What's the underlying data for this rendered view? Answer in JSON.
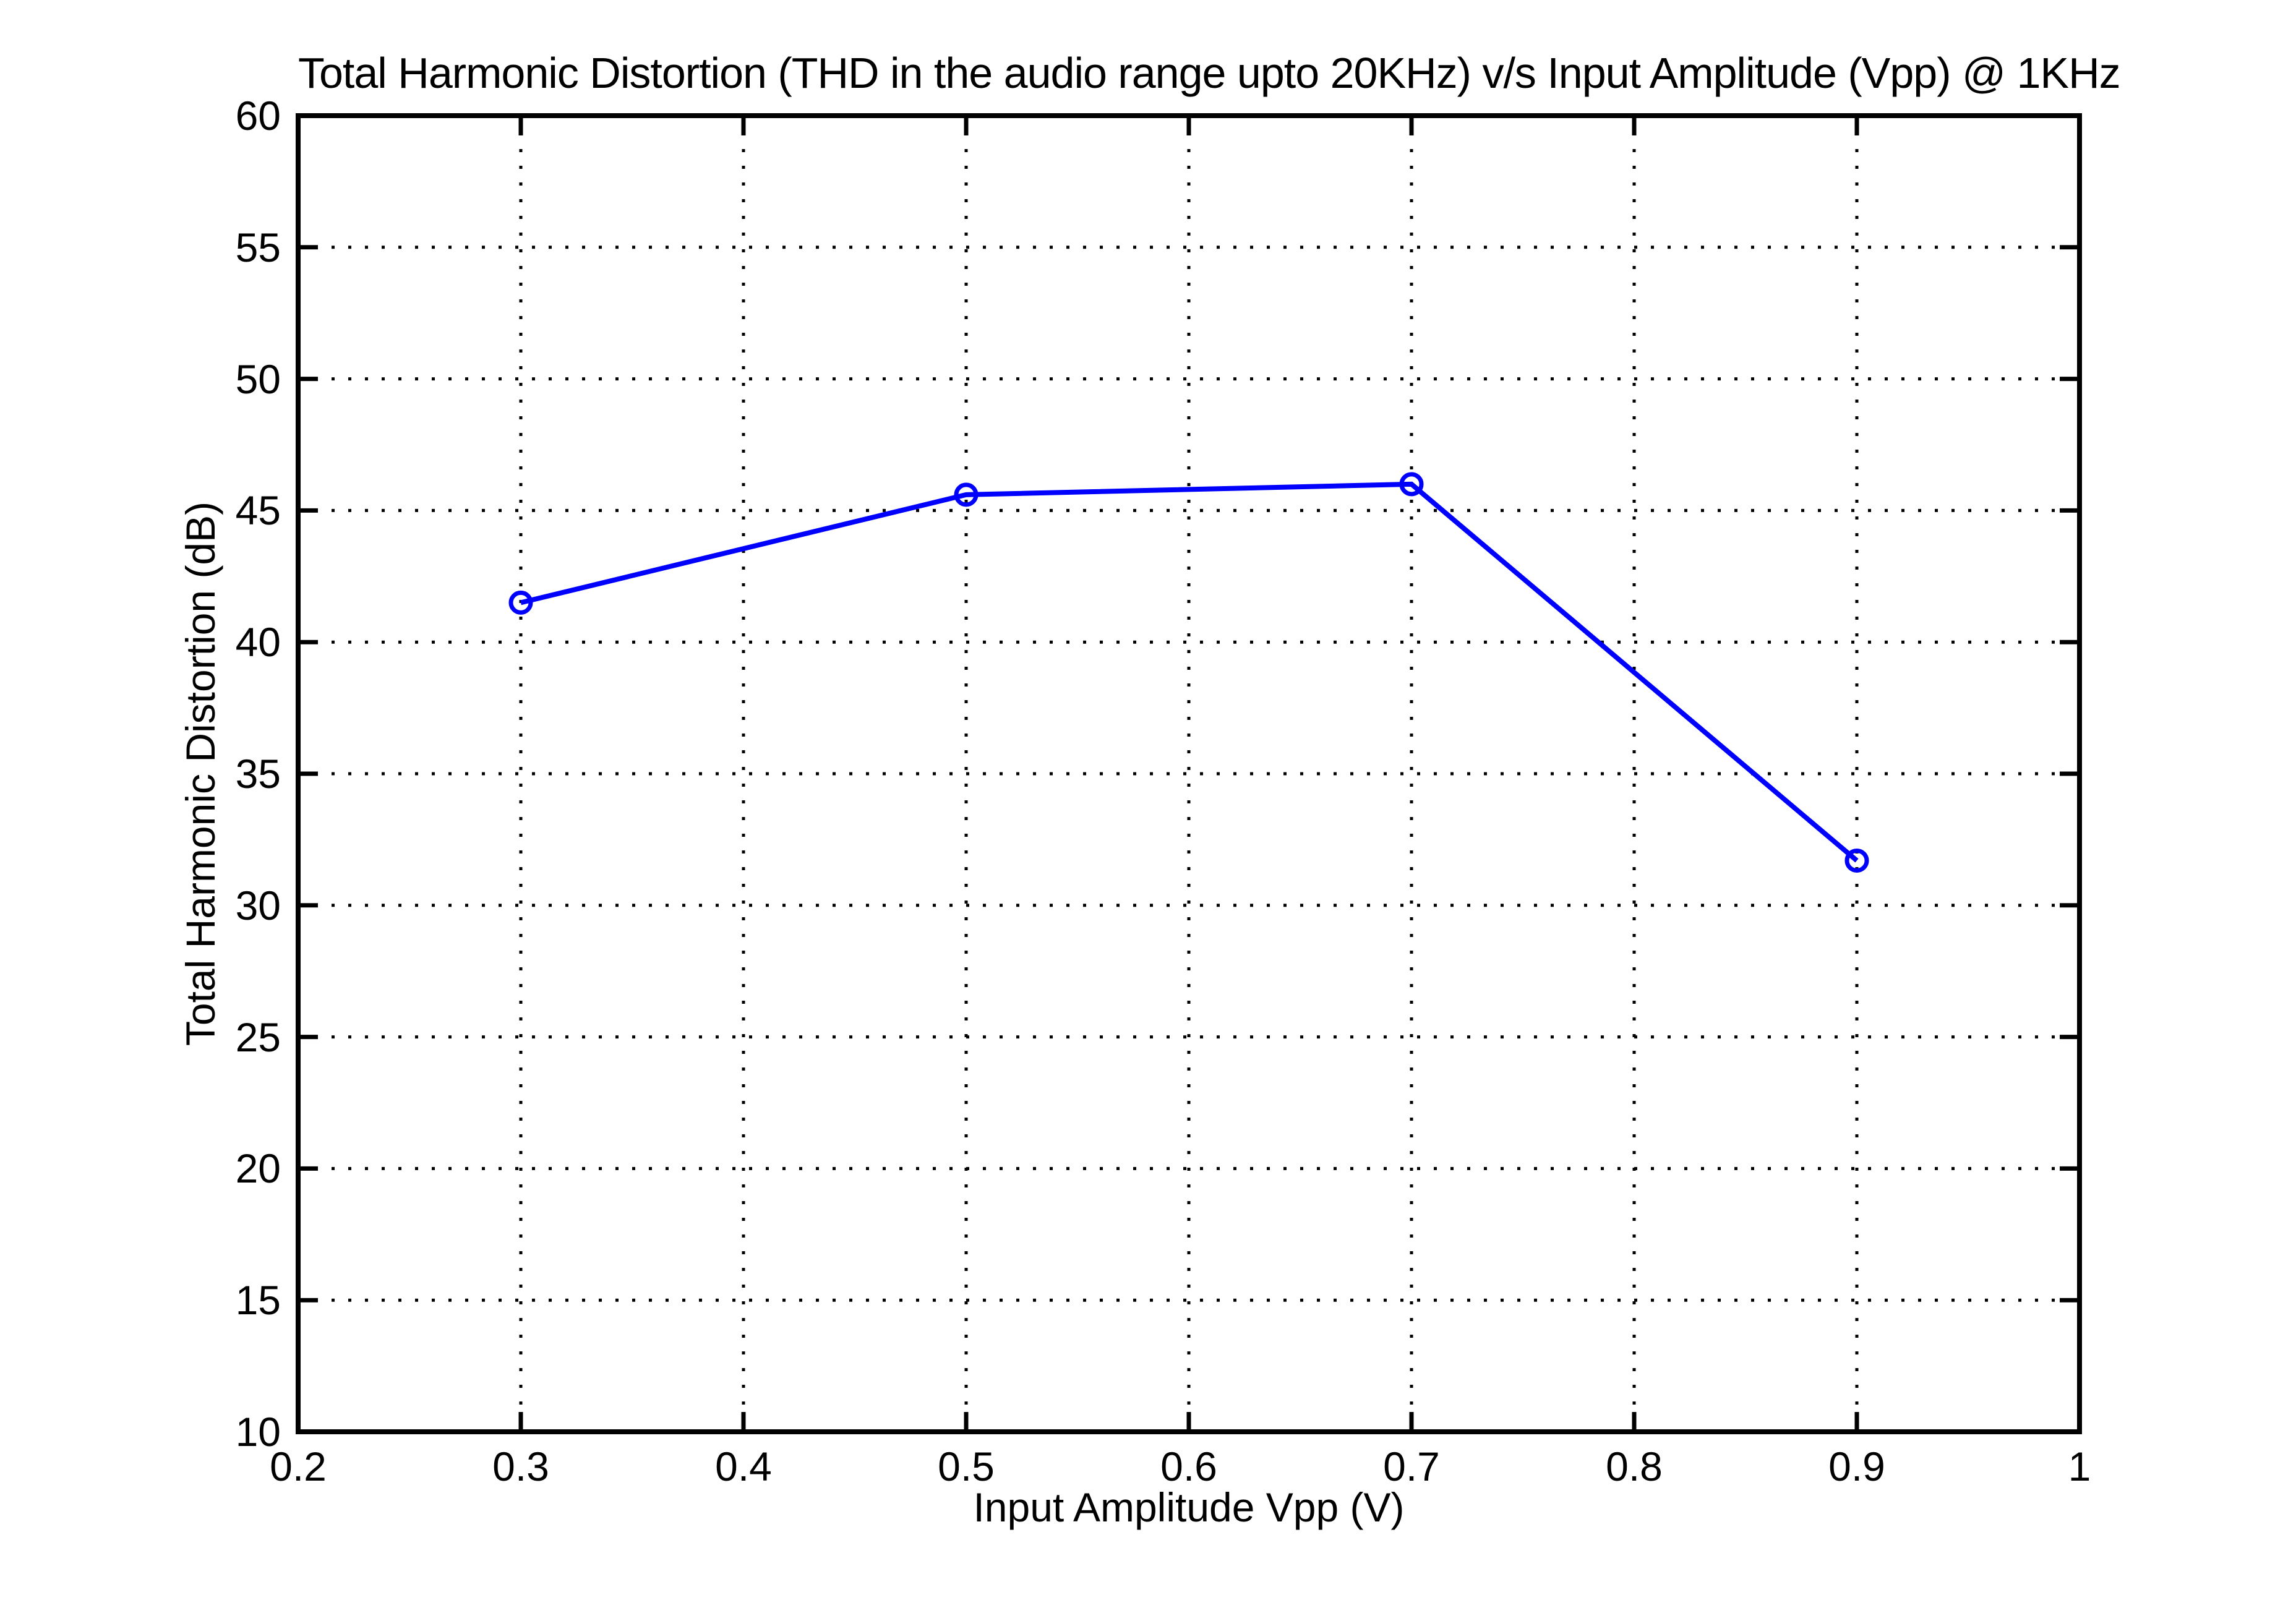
{
  "figure": {
    "background": "#ffffff"
  },
  "chart_data": {
    "type": "line",
    "title": "Total Harmonic Distortion (THD in the audio range upto 20KHz) v/s Input Amplitude (Vpp) @ 1KHz",
    "xlabel": "Input Amplitude Vpp (V)",
    "ylabel": "Total Harmonic Distortion (dB)",
    "x": [
      0.3,
      0.5,
      0.7,
      0.9
    ],
    "values": [
      41.5,
      45.6,
      46.0,
      31.7
    ],
    "series_name": "THD (dB)",
    "xlim": [
      0.2,
      1
    ],
    "ylim": [
      10,
      60
    ],
    "xtick_labels": [
      "0.2",
      "0.3",
      "0.4",
      "0.5",
      "0.6",
      "0.7",
      "0.8",
      "0.9",
      "1"
    ],
    "ytick_labels": [
      "10",
      "15",
      "20",
      "25",
      "30",
      "35",
      "40",
      "45",
      "50",
      "55",
      "60"
    ],
    "grid": "dotted",
    "legend_position": "none",
    "line_color": "#0000ff",
    "marker": "open-circle",
    "axis_color": "#000000",
    "grid_color": "#000000",
    "background": "#ffffff"
  }
}
